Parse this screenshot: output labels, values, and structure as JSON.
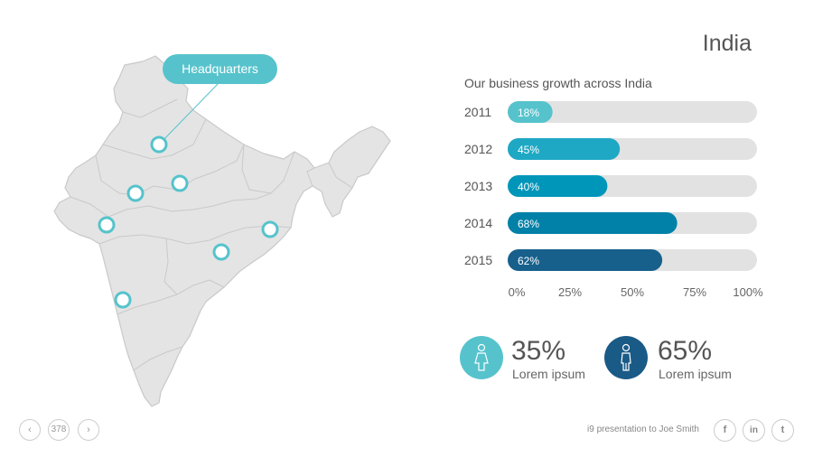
{
  "slide": {
    "title": "India",
    "map_callout": "Headquarters",
    "map_markers": 7
  },
  "chart_data": {
    "type": "bar",
    "orientation": "horizontal",
    "title": "Our business growth across India",
    "categories": [
      "2011",
      "2012",
      "2013",
      "2014",
      "2015"
    ],
    "values": [
      18,
      45,
      40,
      68,
      62
    ],
    "value_labels": [
      "18%",
      "45%",
      "40%",
      "68%",
      "62%"
    ],
    "xlim": [
      0,
      100
    ],
    "ticks": [
      "0%",
      "25%",
      "50%",
      "75%",
      "100%"
    ],
    "bar_colors": [
      "#56c3cc",
      "#1ea8c4",
      "#0096b9",
      "#0181a8",
      "#17608c"
    ],
    "track_color": "#e2e2e2",
    "grid": false
  },
  "stats": [
    {
      "value": "35%",
      "label": "Lorem ipsum",
      "icon": "female-person-icon",
      "color": "#56c3cc"
    },
    {
      "value": "65%",
      "label": "Lorem ipsum",
      "icon": "male-person-icon",
      "color": "#1a5a86"
    }
  ],
  "footer": {
    "page_number": "378",
    "prev_icon": "chevron-left-icon",
    "next_icon": "chevron-right-icon",
    "presentation_text": "i9 presentation to Joe Smith",
    "social": [
      {
        "name": "facebook-icon",
        "glyph": "f"
      },
      {
        "name": "linkedin-icon",
        "glyph": "in"
      },
      {
        "name": "twitter-icon",
        "glyph": "t"
      }
    ]
  }
}
